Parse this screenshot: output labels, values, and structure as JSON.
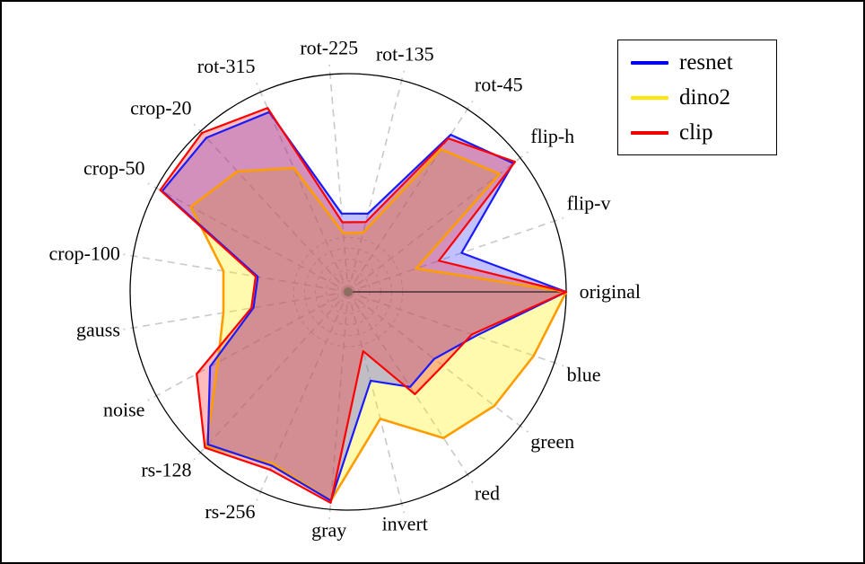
{
  "figure": {
    "description": "Radar chart comparing robustness of three vision models across image transformations",
    "background": "#ffffff",
    "outer_circle_color": "#000000",
    "grid_color": "#c9c9c9",
    "original_axis_color": "#000000",
    "center_dot_color": "#8a6f5f"
  },
  "legend": {
    "position": "top-right",
    "entries": [
      {
        "label": "resnet",
        "color": "#0000ee"
      },
      {
        "label": "dino2",
        "color": "#ffe600"
      },
      {
        "label": "clip",
        "color": "#ee0000"
      }
    ]
  },
  "chart_data": {
    "type": "radar",
    "title": "",
    "radial_range": [
      0,
      1
    ],
    "grid": "dashed-rings-near-center",
    "legend_position": "top-right",
    "categories": [
      "original",
      "flip-v",
      "flip-h",
      "rot-45",
      "rot-135",
      "rot-225",
      "rot-315",
      "crop-20",
      "crop-50",
      "crop-100",
      "gauss",
      "noise",
      "rs-128",
      "rs-256",
      "gray",
      "invert",
      "red",
      "green",
      "blue"
    ],
    "series": [
      {
        "name": "resnet",
        "legend_color": "#0000ee",
        "line_color": "#1a1aff",
        "fill_color": "#3333ff",
        "fill_opacity": 0.3,
        "values": [
          1.0,
          0.55,
          0.96,
          0.86,
          0.37,
          0.36,
          0.9,
          0.96,
          0.97,
          0.42,
          0.44,
          0.72,
          0.95,
          0.87,
          0.96,
          0.42,
          0.52,
          0.5,
          0.62
        ]
      },
      {
        "name": "dino2",
        "legend_color": "#ffe600",
        "line_color": "#ff9d00",
        "fill_color": "#ffee00",
        "fill_opacity": 0.32,
        "values": [
          1.0,
          0.33,
          0.88,
          0.78,
          0.28,
          0.27,
          0.62,
          0.75,
          0.82,
          0.58,
          0.58,
          0.68,
          0.96,
          0.86,
          0.96,
          0.6,
          0.8,
          0.85,
          0.9
        ]
      },
      {
        "name": "clip",
        "legend_color": "#ee0000",
        "line_color": "#ff0000",
        "fill_color": "#ff2222",
        "fill_opacity": 0.3,
        "values": [
          1.0,
          0.44,
          0.97,
          0.84,
          0.33,
          0.32,
          0.92,
          0.99,
          0.98,
          0.43,
          0.45,
          0.79,
          0.97,
          0.89,
          0.97,
          0.28,
          0.56,
          0.55,
          0.6
        ]
      }
    ]
  }
}
